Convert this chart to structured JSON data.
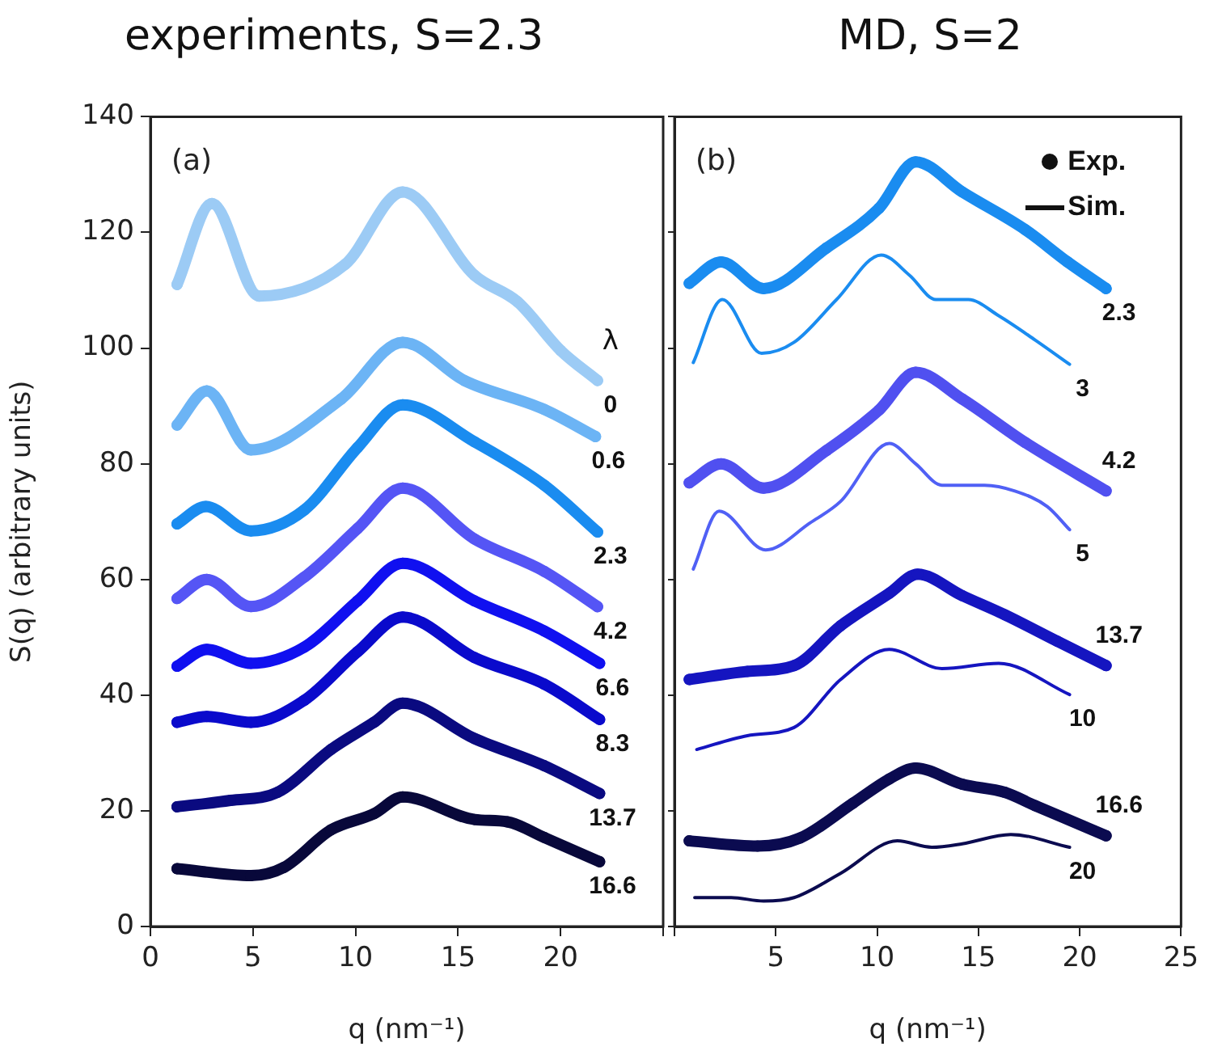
{
  "chart_data": [
    {
      "type": "line",
      "title": "experiments, S=2.3",
      "xlabel": "q (nm⁻¹)",
      "ylabel": "S(q) (arbitrary units)",
      "legend_title": "λ",
      "annotations": [
        "(a)"
      ],
      "marker": "circle",
      "xlim": [
        0,
        25
      ],
      "xticks": [
        0,
        5,
        10,
        15,
        20,
        {
          "value": 25,
          "label": null
        }
      ],
      "ylim": [
        0,
        140
      ],
      "yticks": [
        0,
        20,
        40,
        60,
        80,
        100,
        120,
        140
      ],
      "series": [
        {
          "name": "0",
          "color": "#9ccbf5",
          "x": [
            1.3,
            3.0,
            5.3,
            9.5,
            12.3,
            15.8,
            17.9,
            20,
            21.8
          ],
          "values": [
            111,
            125,
            109,
            114.5,
            127,
            112.6,
            108,
            99.6,
            94.4
          ]
        },
        {
          "name": "0.6",
          "color": "#6cb4f5",
          "x": [
            1.3,
            2.75,
            4.9,
            9.3,
            12.3,
            15.3,
            19.2,
            21.7
          ],
          "values": [
            86.7,
            92.6,
            82.4,
            91.2,
            101,
            94.4,
            89.4,
            84.7
          ]
        },
        {
          "name": "2.3",
          "color": "#1a8cf0",
          "x": [
            1.3,
            2.7,
            4.9,
            7.5,
            10.1,
            12.3,
            15.8,
            19.2,
            21.8
          ],
          "values": [
            69.6,
            72.6,
            68.4,
            72,
            82.8,
            90.2,
            83.8,
            76.3,
            68.2
          ]
        },
        {
          "name": "4.2",
          "color": "#5555f5",
          "x": [
            1.3,
            2.75,
            4.9,
            7.5,
            10.1,
            12.3,
            15.8,
            19.2,
            21.8
          ],
          "values": [
            56.7,
            60,
            55.3,
            60.4,
            68.8,
            75.8,
            67,
            61.4,
            55.3
          ]
        },
        {
          "name": "6.6",
          "color": "#1010f0",
          "x": [
            1.3,
            2.75,
            4.9,
            7.5,
            10.1,
            12.3,
            15.8,
            19.2,
            21.9
          ],
          "values": [
            45,
            47.9,
            45.5,
            48.3,
            56.3,
            62.8,
            56.3,
            51.1,
            45.5
          ]
        },
        {
          "name": "8.3",
          "color": "#0a0acc",
          "x": [
            1.3,
            2.75,
            4.9,
            7.5,
            10.1,
            12.3,
            15.8,
            19.2,
            21.9
          ],
          "values": [
            35.3,
            36.3,
            35.3,
            39.1,
            47.5,
            53.5,
            46.5,
            41.9,
            35.8
          ]
        },
        {
          "name": "13.7",
          "color": "#0a0a80",
          "x": [
            1.3,
            3.9,
            6.2,
            8.8,
            10.9,
            12.3,
            15.8,
            19.2,
            21.9
          ],
          "values": [
            20.7,
            21.8,
            23.2,
            30.6,
            35.3,
            38.6,
            32.5,
            27.8,
            23
          ]
        },
        {
          "name": "16.6",
          "color": "#08083a",
          "x": [
            1.3,
            4.9,
            6.5,
            8.8,
            10.9,
            12.3,
            15.8,
            17.4,
            19.2,
            21.9
          ],
          "values": [
            10,
            8.8,
            10.2,
            16.7,
            19.5,
            22.4,
            18.5,
            18.1,
            15.4,
            11.2
          ]
        }
      ]
    },
    {
      "type": "line",
      "title": "MD, S=2",
      "xlabel": "q (nm⁻¹)",
      "annotations": [
        "(b)",
        "Exp.",
        "Sim."
      ],
      "tick_labels": "x",
      "xlim": [
        0,
        25
      ],
      "xticks": [
        {
          "value": 0,
          "label": null
        },
        5,
        10,
        15,
        20,
        25
      ],
      "ylim": [
        0,
        140
      ],
      "yticks": [
        0,
        20,
        40,
        60,
        80,
        100,
        120,
        140
      ],
      "series": [
        {
          "name": "2.3",
          "marker": "circle",
          "color": "#1a8cf0",
          "x": [
            0.73,
            2.3,
            4.4,
            7.5,
            10.1,
            11.9,
            14.2,
            17.3,
            19.4,
            21.3
          ],
          "values": [
            111.2,
            114.9,
            110.3,
            117.3,
            124.2,
            132.2,
            127,
            120.5,
            114.9,
            110.3
          ]
        },
        {
          "name": "3",
          "marker": "none",
          "color": "#1a8cf0",
          "x": [
            0.93,
            2.36,
            4.3,
            5.9,
            8,
            10.2,
            11.6,
            12.9,
            14.5,
            16,
            17.8,
            19.5
          ],
          "values": [
            97.5,
            108.4,
            99.1,
            101,
            108.4,
            116.1,
            112.6,
            108.4,
            108.4,
            105.6,
            101.4,
            97.2
          ]
        },
        {
          "name": "4.2",
          "marker": "circle",
          "color": "#5050f0",
          "x": [
            0.73,
            2.3,
            4.4,
            7.5,
            10.1,
            11.9,
            14.2,
            17.3,
            21.3
          ],
          "values": [
            76.7,
            80,
            75.8,
            82.3,
            89.3,
            95.8,
            91.2,
            83.7,
            75.3
          ]
        },
        {
          "name": "5",
          "marker": "none",
          "color": "#5060f5",
          "x": [
            0.93,
            2.2,
            4.5,
            6.7,
            8.2,
            10.6,
            11.9,
            13.2,
            15.3,
            16.8,
            18.4,
            19.5
          ],
          "values": [
            61.8,
            71.8,
            65.1,
            69.8,
            73.5,
            83.5,
            80,
            76.3,
            76.3,
            75.3,
            72.6,
            68.6
          ]
        },
        {
          "name": "13.7",
          "marker": "circle",
          "color": "#1515c0",
          "x": [
            0.73,
            3.6,
            5.9,
            8.2,
            10.6,
            12,
            14.2,
            16.3,
            18.9,
            21.3
          ],
          "values": [
            42.7,
            44.1,
            45.1,
            52,
            57.6,
            60.9,
            57.2,
            53.9,
            49.3,
            45.1
          ]
        },
        {
          "name": "10",
          "marker": "none",
          "color": "#1515c0",
          "x": [
            1.1,
            3.6,
            5.9,
            8.2,
            10.6,
            13.2,
            16,
            19.5
          ],
          "values": [
            30.6,
            33,
            34.4,
            42.7,
            47.9,
            44.6,
            45.5,
            40.1
          ]
        },
        {
          "name": "16.6",
          "marker": "circle",
          "color": "#0b0b50",
          "x": [
            0.73,
            4.1,
            6.2,
            8.8,
            10.6,
            11.9,
            14.2,
            16.3,
            17.8,
            21.3
          ],
          "values": [
            14.8,
            13.9,
            15.3,
            21.3,
            25.5,
            27.4,
            24.6,
            23.2,
            20.9,
            15.7
          ]
        },
        {
          "name": "20",
          "marker": "none",
          "color": "#0b0b50",
          "x": [
            1,
            2.8,
            4.4,
            5.9,
            8.2,
            11,
            12.7,
            14.2,
            16.6,
            19.5
          ],
          "values": [
            5,
            5,
            4.4,
            5,
            9.2,
            14.8,
            13.7,
            14.3,
            15.9,
            13.7
          ]
        }
      ]
    }
  ]
}
